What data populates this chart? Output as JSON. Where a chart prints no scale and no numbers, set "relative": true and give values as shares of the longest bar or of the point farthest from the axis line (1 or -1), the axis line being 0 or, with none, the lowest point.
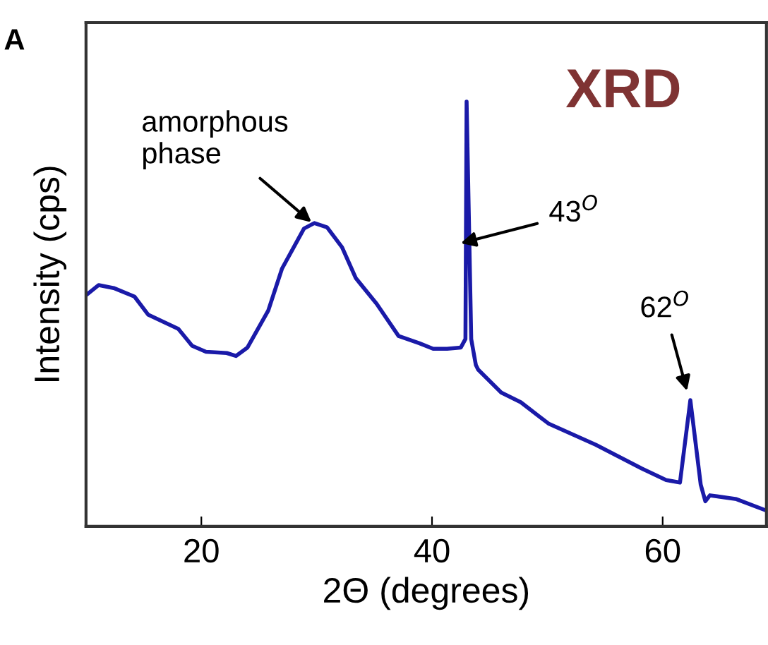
{
  "chart_data": {
    "type": "line",
    "title": "XRD",
    "xlabel": "2Θ (degrees)",
    "ylabel": "Intensity (cps)",
    "relative": true,
    "xlim": [
      10,
      69
    ],
    "xticks": [
      20,
      40,
      60
    ],
    "grid": false,
    "legend": false,
    "marker": "none",
    "line_style": "solid",
    "annotations": [
      "A",
      {
        "text": "amorphous\nphase",
        "x": 29.8,
        "y": 0.71
      },
      "43$^{O}$",
      {
        "text": "62$^{O}$",
        "x": 62.2,
        "y": 0.31
      }
    ],
    "series": [
      {
        "color": "#1a1aa8",
        "x": [
          10.0,
          11.1,
          12.4,
          14.2,
          15.4,
          18.0,
          19.2,
          20.4,
          22.2,
          23.0,
          24.0,
          25.8,
          27.0,
          28.9,
          29.8,
          30.9,
          32.2,
          33.4,
          35.2,
          37.1,
          38.9,
          40.1,
          41.3,
          42.5,
          42.9,
          43.0,
          43.4,
          43.8,
          44.0,
          46.0,
          47.7,
          50.1,
          54.2,
          58.2,
          60.3,
          61.5,
          62.4,
          63.3,
          63.7,
          64.1,
          66.4,
          69.0
        ],
        "values": [
          0.544,
          0.568,
          0.561,
          0.541,
          0.498,
          0.465,
          0.425,
          0.411,
          0.408,
          0.401,
          0.421,
          0.508,
          0.607,
          0.701,
          0.714,
          0.704,
          0.657,
          0.584,
          0.524,
          0.448,
          0.431,
          0.418,
          0.418,
          0.421,
          0.441,
          1.0,
          0.441,
          0.38,
          0.369,
          0.315,
          0.292,
          0.242,
          0.192,
          0.136,
          0.109,
          0.103,
          0.297,
          0.098,
          0.059,
          0.073,
          0.064,
          0.037
        ]
      }
    ]
  }
}
